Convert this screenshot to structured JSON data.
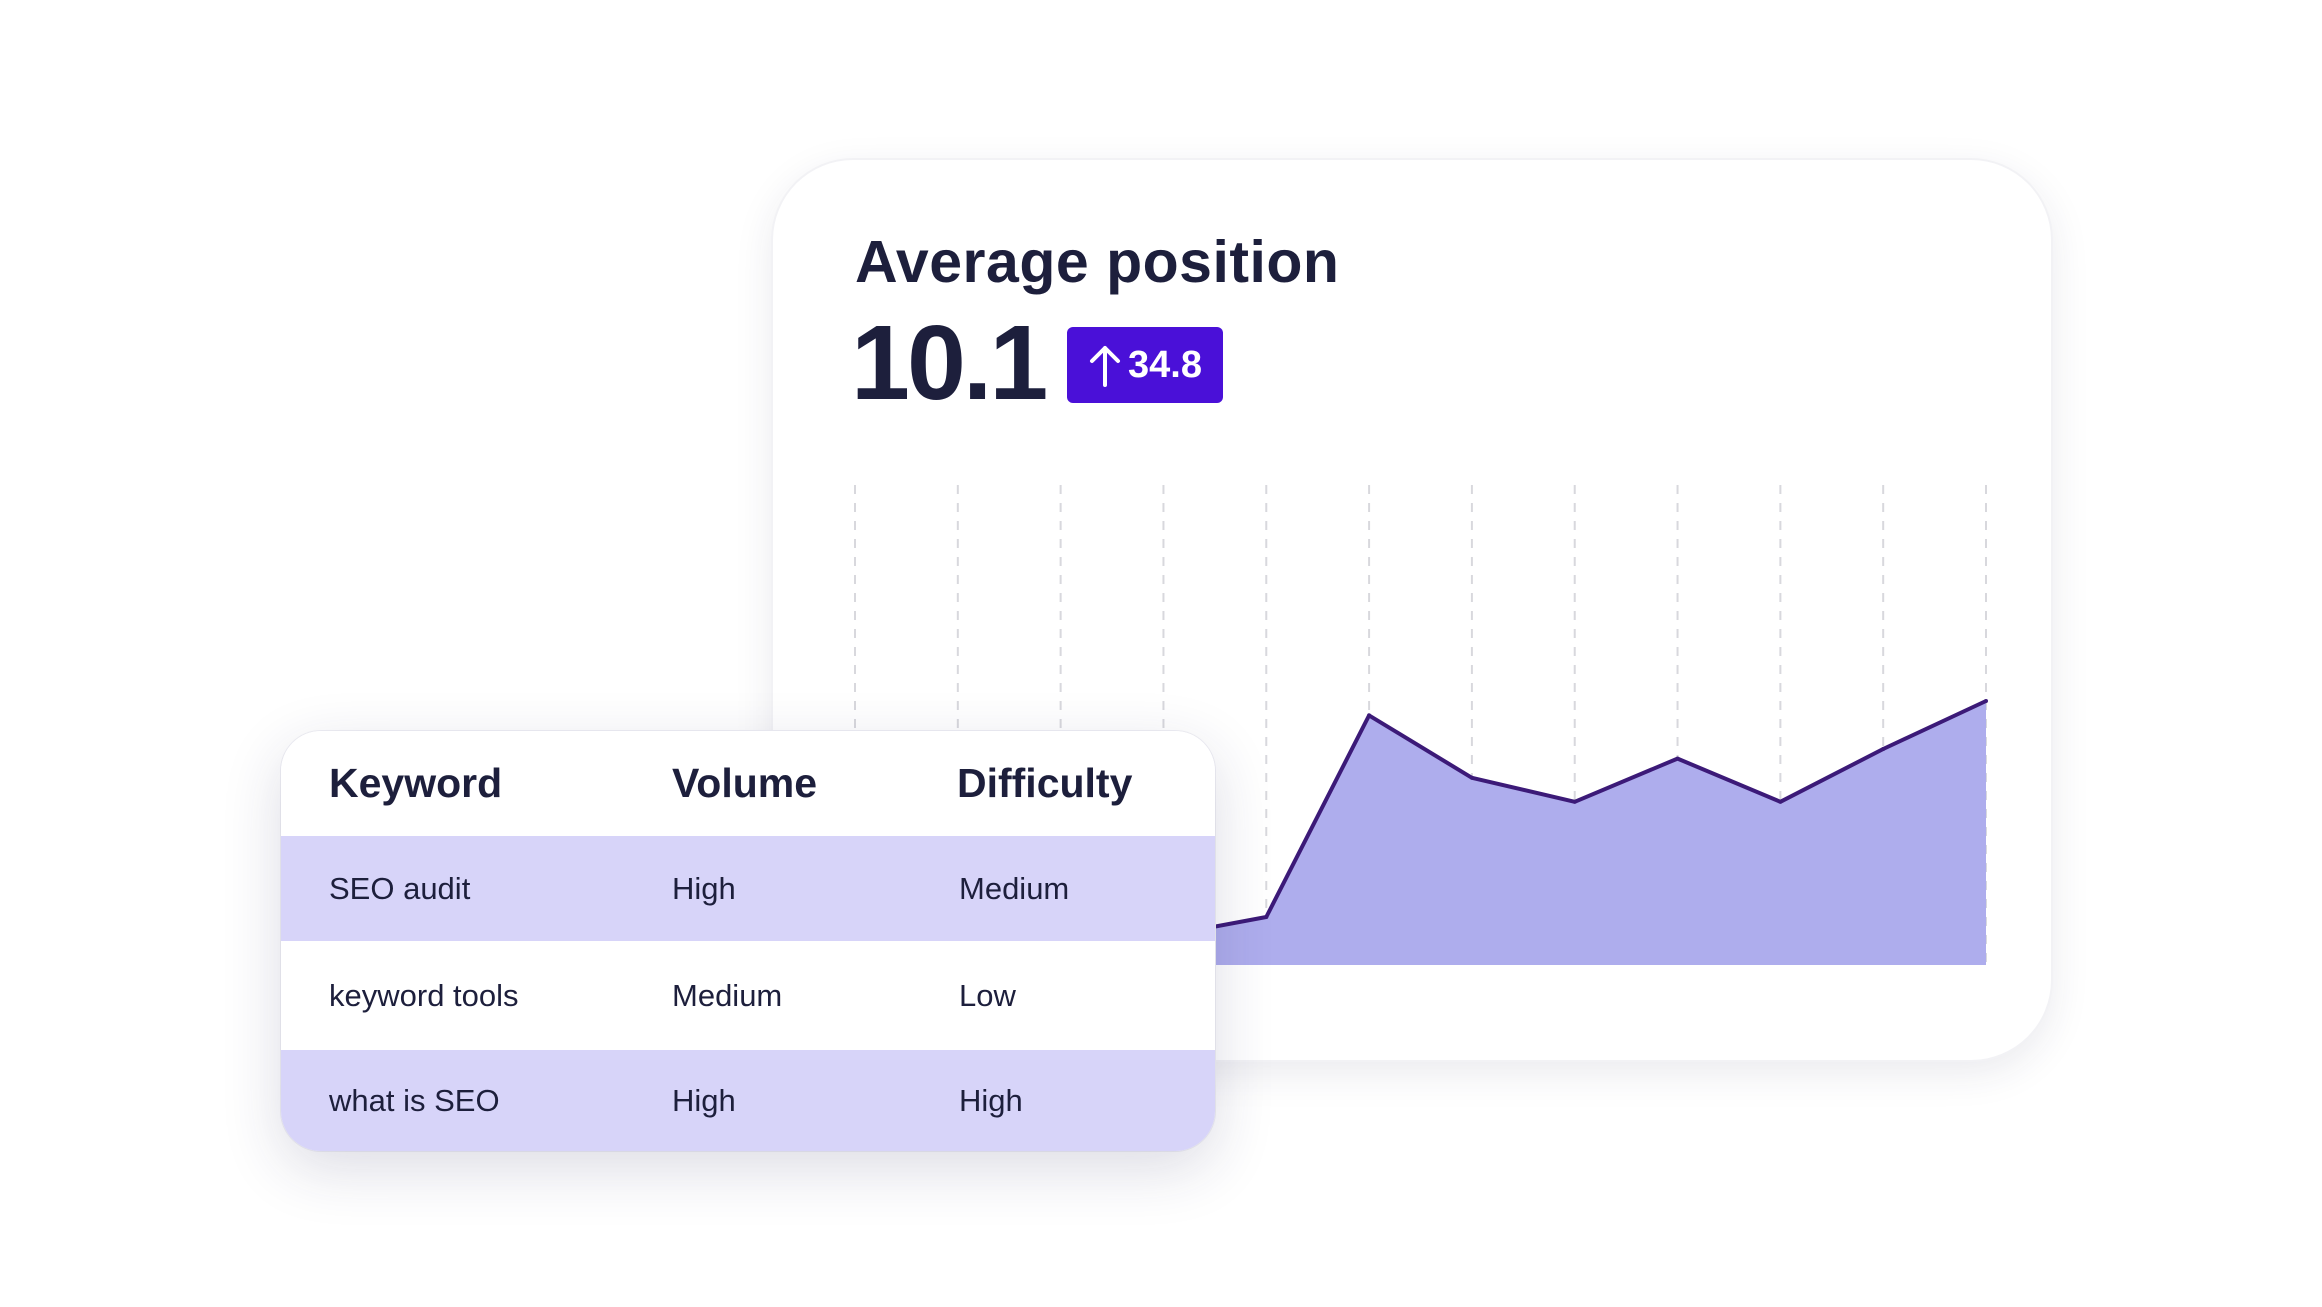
{
  "chart_card": {
    "title": "Average position",
    "value": "10.1",
    "change": "34.8",
    "change_icon": "arrow-up-icon",
    "colors": {
      "badge": "#4a10d8",
      "line": "#3c1a78",
      "area": "#aeaded",
      "grid": "#d8d8dd"
    }
  },
  "chart_data": {
    "type": "area",
    "x": [
      1,
      2,
      3,
      4,
      5,
      6,
      7,
      8,
      9,
      10,
      11,
      12
    ],
    "series": [
      {
        "values": [
          3,
          2,
          5,
          6,
          10,
          52,
          39,
          34,
          43,
          34,
          45,
          55
        ]
      }
    ],
    "ylim": [
      0,
      100
    ],
    "title": "",
    "xlabel": "",
    "ylabel": "",
    "grid": "vertical-dashed",
    "legend": "none"
  },
  "keyword_table": {
    "headers": {
      "keyword": "Keyword",
      "volume": "Volume",
      "difficulty": "Difficulty"
    },
    "rows": [
      {
        "keyword": "SEO audit",
        "volume": "High",
        "difficulty": "Medium"
      },
      {
        "keyword": "keyword tools",
        "volume": "Medium",
        "difficulty": "Low"
      },
      {
        "keyword": "what is SEO",
        "volume": "High",
        "difficulty": "High"
      }
    ],
    "row_highlight_color": "#d7d4f9"
  }
}
